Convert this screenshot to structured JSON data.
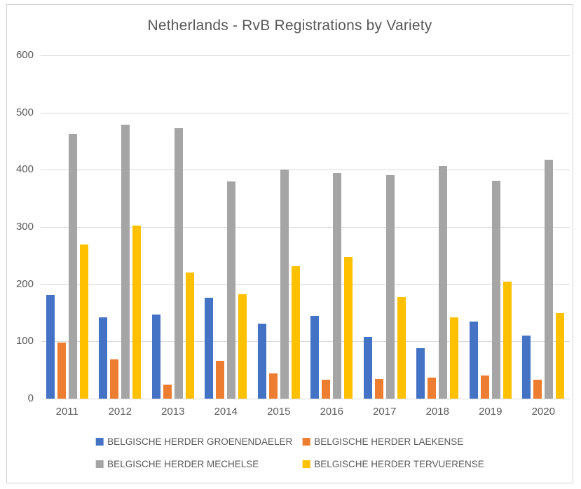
{
  "chart_data": {
    "type": "bar",
    "title": "Netherlands - RvB Registrations by Variety",
    "categories": [
      "2011",
      "2012",
      "2013",
      "2014",
      "2015",
      "2016",
      "2017",
      "2018",
      "2019",
      "2020"
    ],
    "series": [
      {
        "name": "BELGISCHE HERDER GROENENDAELER",
        "color": "#4472C4",
        "values": [
          181,
          142,
          147,
          176,
          131,
          145,
          108,
          88,
          135,
          110
        ]
      },
      {
        "name": "BELGISCHE HERDER LAEKENSE",
        "color": "#ED7D31",
        "values": [
          98,
          68,
          24,
          66,
          44,
          33,
          34,
          37,
          41,
          33
        ]
      },
      {
        "name": "BELGISCHE HERDER MECHELSE",
        "color": "#A5A5A5",
        "values": [
          463,
          479,
          473,
          379,
          401,
          394,
          391,
          407,
          381,
          418
        ]
      },
      {
        "name": "BELGISCHE HERDER TERVUERENSE",
        "color": "#FFC000",
        "values": [
          270,
          302,
          220,
          183,
          231,
          247,
          177,
          142,
          205,
          150
        ]
      }
    ],
    "xlabel": "",
    "ylabel": "",
    "ylim": [
      0,
      600
    ],
    "yticks": [
      0,
      100,
      200,
      300,
      400,
      500,
      600
    ],
    "grid": true,
    "legend_position": "bottom",
    "colors": {
      "text": "#595959",
      "gridline": "#d9d9d9",
      "frame_border": "#d0d0d0",
      "background": "#ffffff"
    }
  }
}
